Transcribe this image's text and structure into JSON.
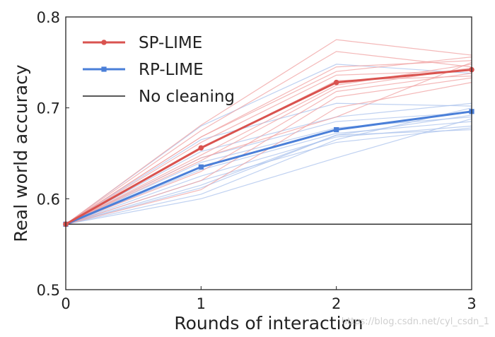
{
  "chart_data": {
    "type": "line",
    "xlabel": "Rounds of interaction",
    "ylabel": "Real world accuracy",
    "x": [
      0,
      1,
      2,
      3
    ],
    "xticks": [
      "0",
      "1",
      "2",
      "3"
    ],
    "yticks": [
      "0.5",
      "0.6",
      "0.7",
      "0.8"
    ],
    "xlim": [
      0,
      3
    ],
    "ylim": [
      0.5,
      0.8
    ],
    "grid": false,
    "legend_position": "top-left",
    "series": [
      {
        "name": "SP-LIME",
        "color": "#d9534f",
        "marker": "circle",
        "values": [
          0.572,
          0.656,
          0.728,
          0.742
        ]
      },
      {
        "name": "RP-LIME",
        "color": "#4a7fd8",
        "marker": "square",
        "values": [
          0.572,
          0.635,
          0.676,
          0.696
        ]
      },
      {
        "name": "No cleaning",
        "color": "#222222",
        "marker": "none",
        "values": [
          0.572,
          0.572,
          0.572,
          0.572
        ]
      }
    ],
    "individual_runs": {
      "SP-LIME": {
        "color": "#f0a0a0",
        "runs": [
          [
            0.572,
            0.681,
            0.775,
            0.758
          ],
          [
            0.572,
            0.675,
            0.762,
            0.745
          ],
          [
            0.572,
            0.668,
            0.745,
            0.752
          ],
          [
            0.572,
            0.662,
            0.736,
            0.741
          ],
          [
            0.572,
            0.655,
            0.73,
            0.735
          ],
          [
            0.572,
            0.648,
            0.725,
            0.748
          ],
          [
            0.572,
            0.642,
            0.722,
            0.744
          ],
          [
            0.572,
            0.63,
            0.718,
            0.738
          ],
          [
            0.572,
            0.62,
            0.712,
            0.733
          ],
          [
            0.572,
            0.61,
            0.7,
            0.728
          ],
          [
            0.572,
            0.668,
            0.74,
            0.756
          ],
          [
            0.572,
            0.645,
            0.69,
            0.75
          ]
        ]
      },
      "RP-LIME": {
        "color": "#a9c1ec",
        "runs": [
          [
            0.572,
            0.68,
            0.748,
            0.738
          ],
          [
            0.572,
            0.665,
            0.705,
            0.702
          ],
          [
            0.572,
            0.652,
            0.69,
            0.705
          ],
          [
            0.572,
            0.645,
            0.685,
            0.695
          ],
          [
            0.572,
            0.64,
            0.678,
            0.69
          ],
          [
            0.572,
            0.632,
            0.672,
            0.685
          ],
          [
            0.572,
            0.625,
            0.668,
            0.68
          ],
          [
            0.572,
            0.62,
            0.662,
            0.678
          ],
          [
            0.572,
            0.612,
            0.67,
            0.676
          ],
          [
            0.572,
            0.605,
            0.665,
            0.7
          ],
          [
            0.572,
            0.6,
            0.645,
            0.688
          ],
          [
            0.572,
            0.615,
            0.67,
            0.692
          ]
        ]
      }
    },
    "watermark": "https://blog.csdn.net/cyl_csdn_1"
  }
}
